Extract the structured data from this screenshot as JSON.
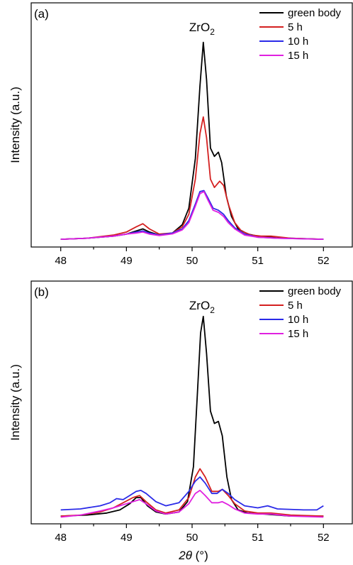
{
  "colors": {
    "green body": "#000000",
    "5 h": "#d42020",
    "10 h": "#2a2ae8",
    "15 h": "#e020e0"
  },
  "xlabel_symbol": "2θ",
  "xlabel_unit": " (°)",
  "chart_data": [
    {
      "type": "line",
      "panel_label": "(a)",
      "title": "",
      "xlabel": "",
      "ylabel": "Intensity (a.u.)",
      "xlim": [
        47.55,
        52.45
      ],
      "ylim": [
        0,
        1
      ],
      "xticks": [
        48,
        49,
        50,
        51,
        52
      ],
      "annotation": {
        "text": "ZrO",
        "sub": "2",
        "x": 50.15
      },
      "legend_position": "top-right",
      "series": [
        {
          "name": "green body",
          "points": [
            [
              48.0,
              0.01
            ],
            [
              48.4,
              0.015
            ],
            [
              48.8,
              0.025
            ],
            [
              49.0,
              0.035
            ],
            [
              49.15,
              0.05
            ],
            [
              49.25,
              0.06
            ],
            [
              49.35,
              0.045
            ],
            [
              49.5,
              0.03
            ],
            [
              49.7,
              0.04
            ],
            [
              49.85,
              0.08
            ],
            [
              49.95,
              0.16
            ],
            [
              50.05,
              0.4
            ],
            [
              50.12,
              0.75
            ],
            [
              50.17,
              0.96
            ],
            [
              50.22,
              0.78
            ],
            [
              50.28,
              0.45
            ],
            [
              50.34,
              0.41
            ],
            [
              50.4,
              0.43
            ],
            [
              50.45,
              0.38
            ],
            [
              50.52,
              0.22
            ],
            [
              50.6,
              0.12
            ],
            [
              50.7,
              0.06
            ],
            [
              50.85,
              0.035
            ],
            [
              51.0,
              0.025
            ],
            [
              51.2,
              0.02
            ],
            [
              51.5,
              0.015
            ],
            [
              52.0,
              0.01
            ]
          ]
        },
        {
          "name": "5 h",
          "points": [
            [
              48.0,
              0.01
            ],
            [
              48.4,
              0.015
            ],
            [
              48.8,
              0.03
            ],
            [
              49.0,
              0.045
            ],
            [
              49.15,
              0.07
            ],
            [
              49.25,
              0.085
            ],
            [
              49.35,
              0.06
            ],
            [
              49.5,
              0.035
            ],
            [
              49.7,
              0.04
            ],
            [
              49.85,
              0.07
            ],
            [
              49.95,
              0.13
            ],
            [
              50.05,
              0.3
            ],
            [
              50.12,
              0.52
            ],
            [
              50.17,
              0.6
            ],
            [
              50.22,
              0.5
            ],
            [
              50.28,
              0.3
            ],
            [
              50.34,
              0.26
            ],
            [
              50.42,
              0.29
            ],
            [
              50.48,
              0.27
            ],
            [
              50.55,
              0.18
            ],
            [
              50.65,
              0.09
            ],
            [
              50.75,
              0.05
            ],
            [
              50.9,
              0.03
            ],
            [
              51.05,
              0.025
            ],
            [
              51.2,
              0.025
            ],
            [
              51.5,
              0.015
            ],
            [
              52.0,
              0.01
            ]
          ]
        },
        {
          "name": "10 h",
          "points": [
            [
              48.0,
              0.01
            ],
            [
              48.4,
              0.015
            ],
            [
              48.8,
              0.025
            ],
            [
              49.0,
              0.035
            ],
            [
              49.15,
              0.045
            ],
            [
              49.25,
              0.05
            ],
            [
              49.35,
              0.04
            ],
            [
              49.5,
              0.03
            ],
            [
              49.7,
              0.04
            ],
            [
              49.85,
              0.06
            ],
            [
              49.95,
              0.1
            ],
            [
              50.05,
              0.18
            ],
            [
              50.12,
              0.24
            ],
            [
              50.18,
              0.245
            ],
            [
              50.24,
              0.21
            ],
            [
              50.32,
              0.16
            ],
            [
              50.4,
              0.15
            ],
            [
              50.48,
              0.13
            ],
            [
              50.55,
              0.1
            ],
            [
              50.65,
              0.065
            ],
            [
              50.8,
              0.035
            ],
            [
              51.0,
              0.02
            ],
            [
              51.3,
              0.015
            ],
            [
              52.0,
              0.01
            ]
          ]
        },
        {
          "name": "15 h",
          "points": [
            [
              48.0,
              0.01
            ],
            [
              48.4,
              0.015
            ],
            [
              48.8,
              0.025
            ],
            [
              49.0,
              0.035
            ],
            [
              49.15,
              0.04
            ],
            [
              49.25,
              0.045
            ],
            [
              49.35,
              0.035
            ],
            [
              49.5,
              0.028
            ],
            [
              49.7,
              0.036
            ],
            [
              49.85,
              0.055
            ],
            [
              49.95,
              0.09
            ],
            [
              50.05,
              0.17
            ],
            [
              50.12,
              0.23
            ],
            [
              50.18,
              0.24
            ],
            [
              50.24,
              0.2
            ],
            [
              50.32,
              0.15
            ],
            [
              50.4,
              0.14
            ],
            [
              50.48,
              0.12
            ],
            [
              50.55,
              0.09
            ],
            [
              50.65,
              0.06
            ],
            [
              50.8,
              0.03
            ],
            [
              51.0,
              0.02
            ],
            [
              51.3,
              0.015
            ],
            [
              52.0,
              0.01
            ]
          ]
        }
      ]
    },
    {
      "type": "line",
      "panel_label": "(b)",
      "title": "",
      "xlabel": "",
      "ylabel": "Intensity (a.u.)",
      "xlim": [
        47.55,
        52.45
      ],
      "ylim": [
        0,
        1
      ],
      "xticks": [
        48,
        49,
        50,
        51,
        52
      ],
      "annotation": {
        "text": "ZrO",
        "sub": "2",
        "x": 50.15
      },
      "legend_position": "top-right",
      "series": [
        {
          "name": "green body",
          "points": [
            [
              48.0,
              0.01
            ],
            [
              48.4,
              0.015
            ],
            [
              48.7,
              0.025
            ],
            [
              48.9,
              0.04
            ],
            [
              49.05,
              0.07
            ],
            [
              49.15,
              0.1
            ],
            [
              49.22,
              0.1
            ],
            [
              49.32,
              0.06
            ],
            [
              49.45,
              0.03
            ],
            [
              49.6,
              0.02
            ],
            [
              49.8,
              0.03
            ],
            [
              49.93,
              0.08
            ],
            [
              50.02,
              0.25
            ],
            [
              50.08,
              0.6
            ],
            [
              50.13,
              0.9
            ],
            [
              50.17,
              0.98
            ],
            [
              50.22,
              0.8
            ],
            [
              50.28,
              0.52
            ],
            [
              50.34,
              0.46
            ],
            [
              50.4,
              0.47
            ],
            [
              50.46,
              0.4
            ],
            [
              50.53,
              0.2
            ],
            [
              50.6,
              0.09
            ],
            [
              50.7,
              0.04
            ],
            [
              50.85,
              0.025
            ],
            [
              51.1,
              0.02
            ],
            [
              51.5,
              0.01
            ],
            [
              52.0,
              0.01
            ]
          ]
        },
        {
          "name": "5 h",
          "points": [
            [
              48.0,
              0.01
            ],
            [
              48.3,
              0.015
            ],
            [
              48.6,
              0.03
            ],
            [
              48.8,
              0.05
            ],
            [
              48.95,
              0.075
            ],
            [
              49.1,
              0.1
            ],
            [
              49.2,
              0.11
            ],
            [
              49.3,
              0.08
            ],
            [
              49.45,
              0.04
            ],
            [
              49.6,
              0.025
            ],
            [
              49.8,
              0.04
            ],
            [
              49.95,
              0.1
            ],
            [
              50.05,
              0.2
            ],
            [
              50.12,
              0.24
            ],
            [
              50.2,
              0.2
            ],
            [
              50.3,
              0.13
            ],
            [
              50.4,
              0.13
            ],
            [
              50.46,
              0.14
            ],
            [
              50.55,
              0.11
            ],
            [
              50.65,
              0.07
            ],
            [
              50.8,
              0.035
            ],
            [
              51.0,
              0.025
            ],
            [
              51.2,
              0.025
            ],
            [
              51.5,
              0.015
            ],
            [
              52.0,
              0.01
            ]
          ]
        },
        {
          "name": "10 h",
          "points": [
            [
              48.0,
              0.04
            ],
            [
              48.3,
              0.045
            ],
            [
              48.6,
              0.06
            ],
            [
              48.75,
              0.075
            ],
            [
              48.85,
              0.095
            ],
            [
              48.95,
              0.09
            ],
            [
              49.05,
              0.11
            ],
            [
              49.15,
              0.13
            ],
            [
              49.22,
              0.135
            ],
            [
              49.3,
              0.12
            ],
            [
              49.45,
              0.08
            ],
            [
              49.6,
              0.06
            ],
            [
              49.8,
              0.075
            ],
            [
              49.95,
              0.13
            ],
            [
              50.05,
              0.18
            ],
            [
              50.12,
              0.2
            ],
            [
              50.2,
              0.17
            ],
            [
              50.3,
              0.12
            ],
            [
              50.38,
              0.12
            ],
            [
              50.46,
              0.14
            ],
            [
              50.55,
              0.12
            ],
            [
              50.65,
              0.09
            ],
            [
              50.8,
              0.06
            ],
            [
              51.0,
              0.05
            ],
            [
              51.15,
              0.06
            ],
            [
              51.3,
              0.045
            ],
            [
              51.7,
              0.04
            ],
            [
              51.9,
              0.04
            ],
            [
              52.0,
              0.06
            ]
          ]
        },
        {
          "name": "15 h",
          "points": [
            [
              48.0,
              0.005
            ],
            [
              48.3,
              0.015
            ],
            [
              48.6,
              0.035
            ],
            [
              48.8,
              0.05
            ],
            [
              48.95,
              0.065
            ],
            [
              49.1,
              0.08
            ],
            [
              49.2,
              0.09
            ],
            [
              49.3,
              0.07
            ],
            [
              49.45,
              0.035
            ],
            [
              49.6,
              0.02
            ],
            [
              49.8,
              0.03
            ],
            [
              49.95,
              0.07
            ],
            [
              50.05,
              0.12
            ],
            [
              50.12,
              0.135
            ],
            [
              50.2,
              0.11
            ],
            [
              50.3,
              0.075
            ],
            [
              50.4,
              0.075
            ],
            [
              50.46,
              0.08
            ],
            [
              50.55,
              0.065
            ],
            [
              50.65,
              0.045
            ],
            [
              50.8,
              0.025
            ],
            [
              51.0,
              0.02
            ],
            [
              51.2,
              0.02
            ],
            [
              51.5,
              0.01
            ],
            [
              52.0,
              0.005
            ]
          ]
        }
      ]
    }
  ]
}
